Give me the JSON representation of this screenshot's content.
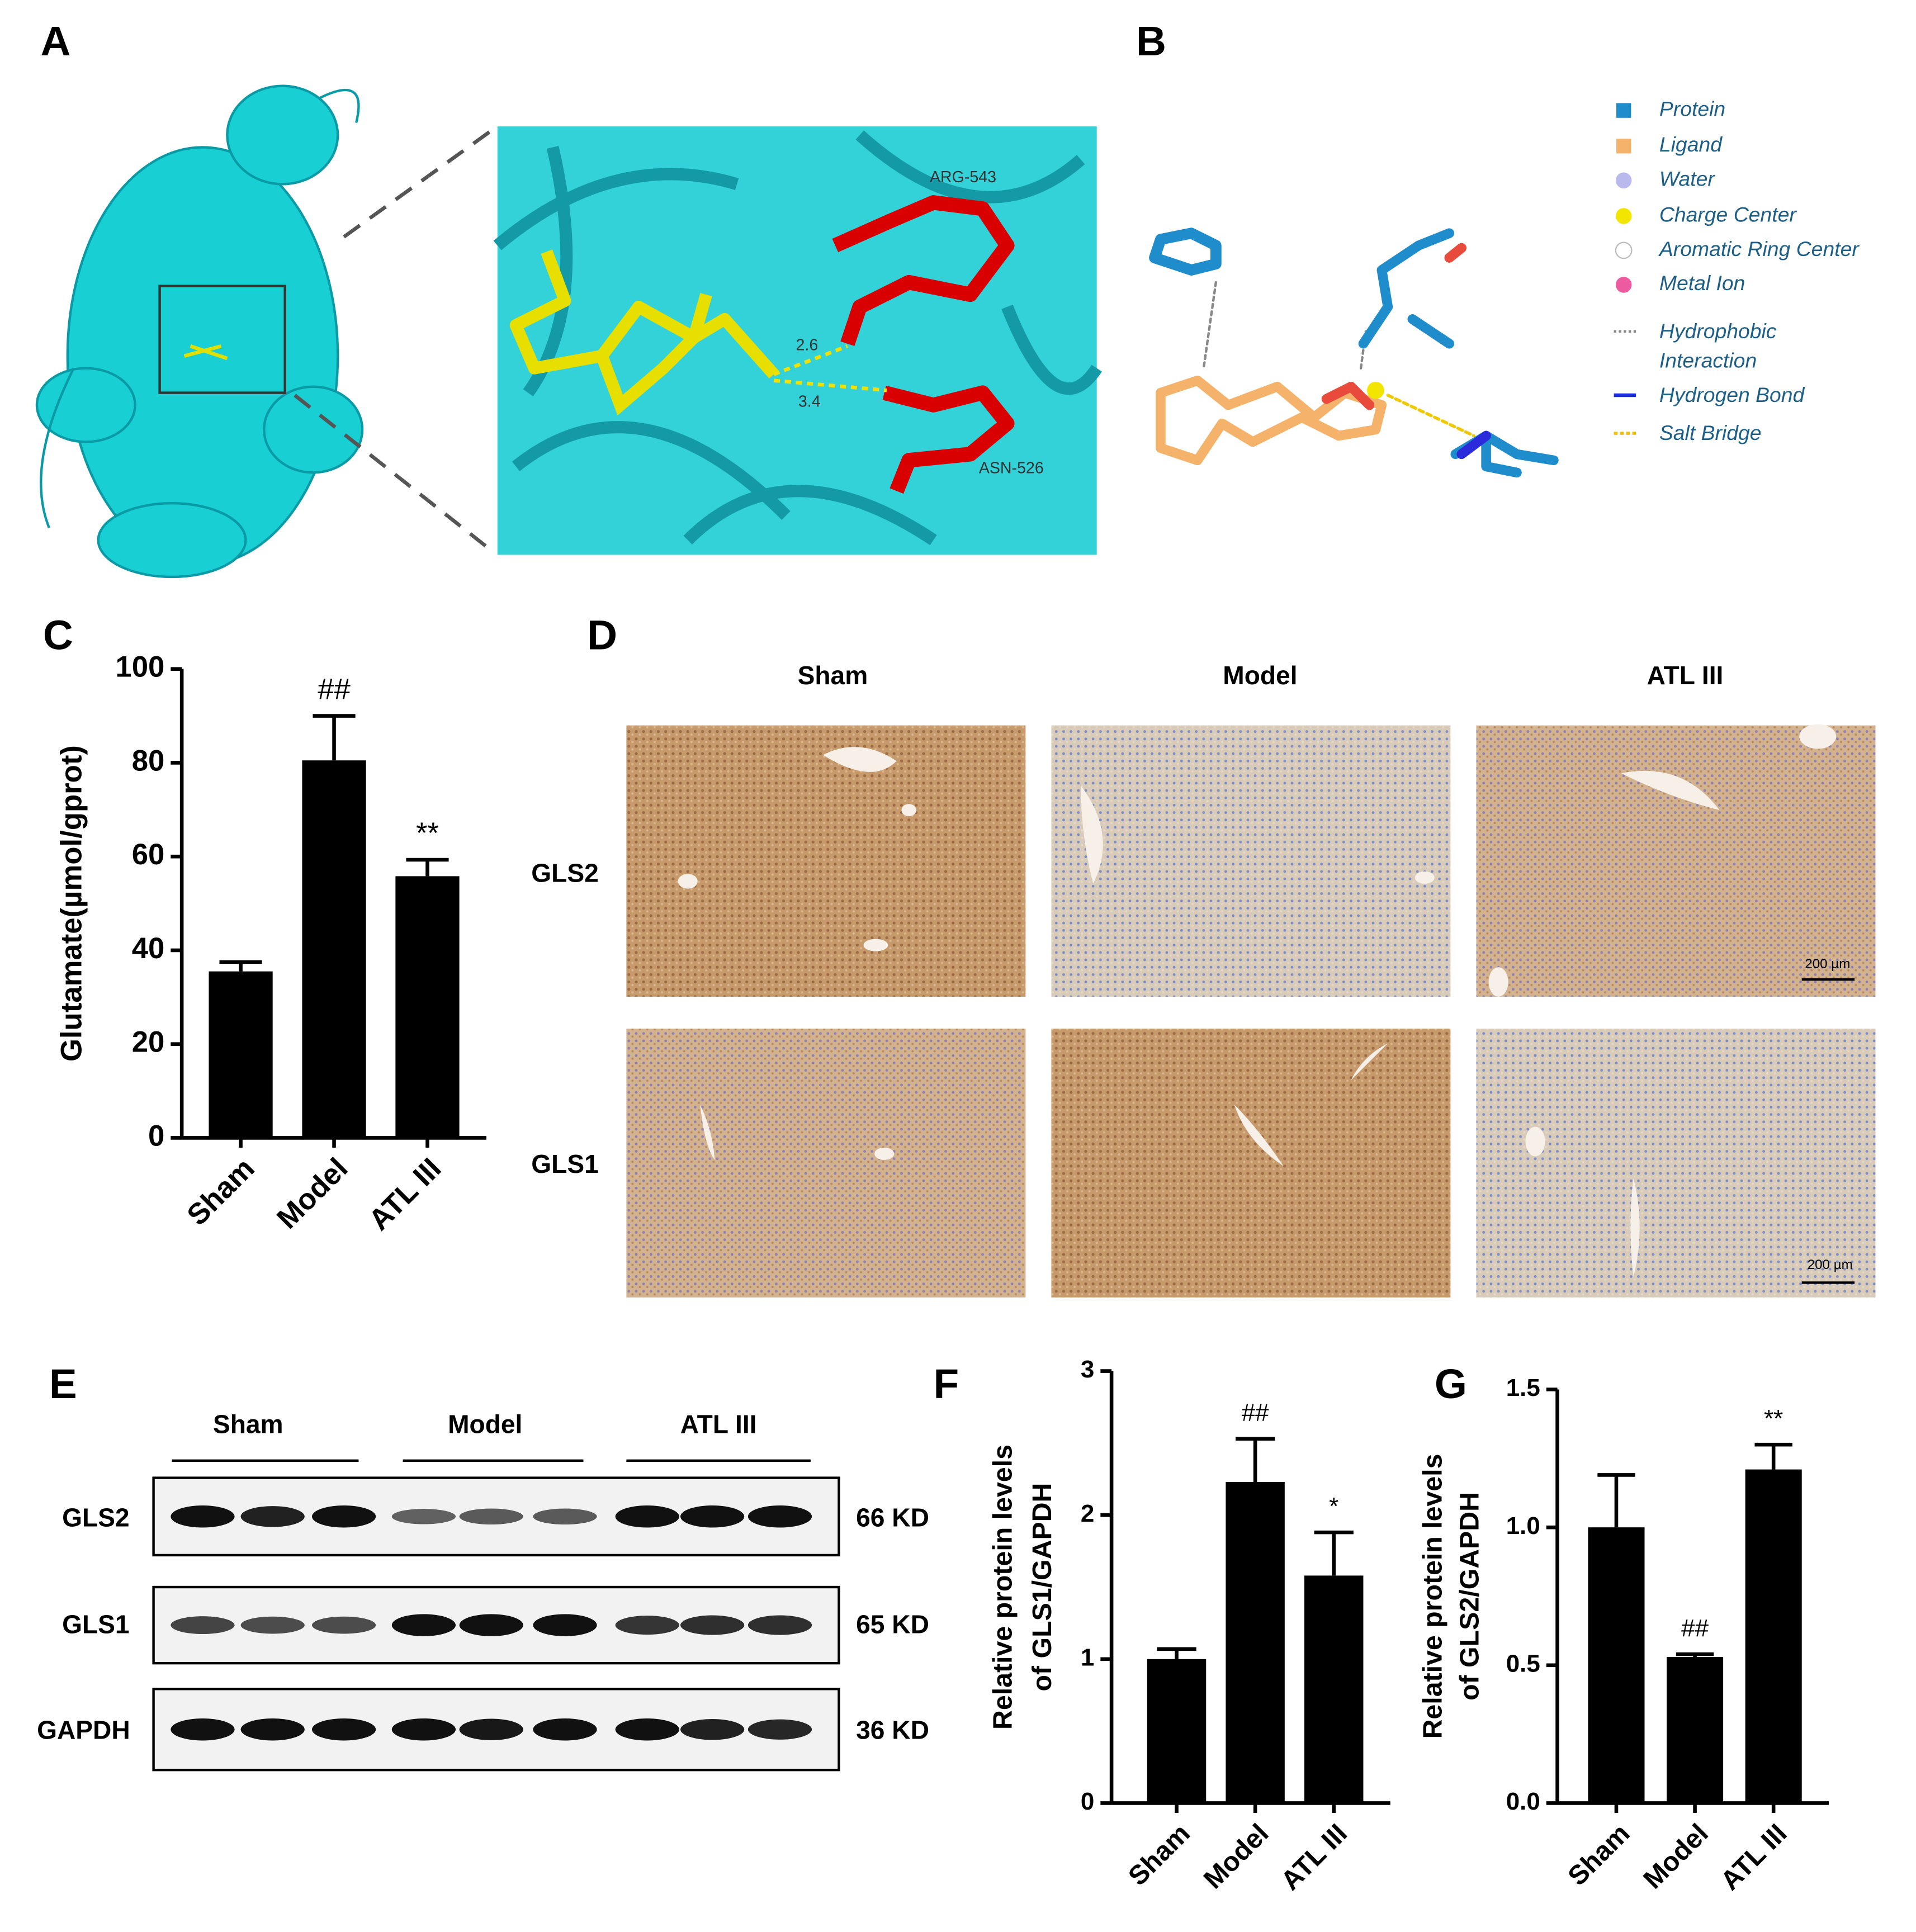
{
  "panels": {
    "A": {
      "label": "A",
      "residues": [
        "ARG-543",
        "ASN-526"
      ],
      "distances": [
        "2.6",
        "3.4"
      ]
    },
    "B": {
      "label": "B",
      "legend": [
        [
          "Protein"
        ],
        [
          "Ligand"
        ],
        [
          "Water"
        ],
        [
          "Charge Center"
        ],
        [
          "Aromatic Ring Center"
        ],
        [
          "Metal Ion"
        ],
        [
          "Hydrophobic",
          "Interaction"
        ],
        [
          "Hydrogen Bond"
        ],
        [
          "Salt Bridge"
        ]
      ]
    },
    "D": {
      "label": "D",
      "columns": [
        "Sham",
        "Model",
        "ATL III"
      ],
      "rows": [
        "GLS2",
        "GLS1"
      ],
      "scale_bar": "200 µm"
    },
    "E": {
      "label": "E",
      "groups": [
        "Sham",
        "Model",
        "ATL III"
      ],
      "rows": [
        "GLS2",
        "GLS1",
        "GAPDH"
      ],
      "sizes": [
        "66 KD",
        "65 KD",
        "36 KD"
      ]
    }
  },
  "chart_data": [
    {
      "type": "bar",
      "panel": "C",
      "ylabel": [
        "Glutamate(µmol/gprot)"
      ],
      "categories": [
        "Sham",
        "Model",
        "ATL III"
      ],
      "values": [
        35.5,
        80.5,
        55.8
      ],
      "errors": [
        2,
        9.5,
        3.5
      ],
      "annotations": [
        null,
        "##",
        "**"
      ],
      "color": "#000000",
      "ylim": [
        0,
        100
      ],
      "yticks": [
        0,
        20,
        40,
        60,
        80,
        100
      ]
    },
    {
      "type": "bar",
      "panel": "F",
      "ylabel": [
        "Relative protein levels",
        "of GLS1/GAPDH"
      ],
      "categories": [
        "Sham",
        "Model",
        "ATL III"
      ],
      "values": [
        1.0,
        2.23,
        1.58
      ],
      "errors": [
        0.07,
        0.3,
        0.3
      ],
      "annotations": [
        null,
        "##",
        "*"
      ],
      "color": "#000000",
      "ylim": [
        0,
        3
      ],
      "yticks": [
        0,
        1,
        2,
        3
      ]
    },
    {
      "type": "bar",
      "panel": "G",
      "ylabel": [
        "Relative protein levels",
        "of GLS2/GAPDH"
      ],
      "categories": [
        "Sham",
        "Model",
        "ATL III"
      ],
      "values": [
        1.0,
        0.53,
        1.21
      ],
      "errors": [
        0.19,
        0.01,
        0.09
      ],
      "annotations": [
        null,
        "##",
        "**"
      ],
      "color": "#000000",
      "ylim": [
        0,
        1.5
      ],
      "yticks": [
        {
          "value": 0,
          "label": "0.0"
        },
        0.5,
        {
          "value": 1,
          "label": "1.0"
        },
        1.5
      ]
    }
  ]
}
